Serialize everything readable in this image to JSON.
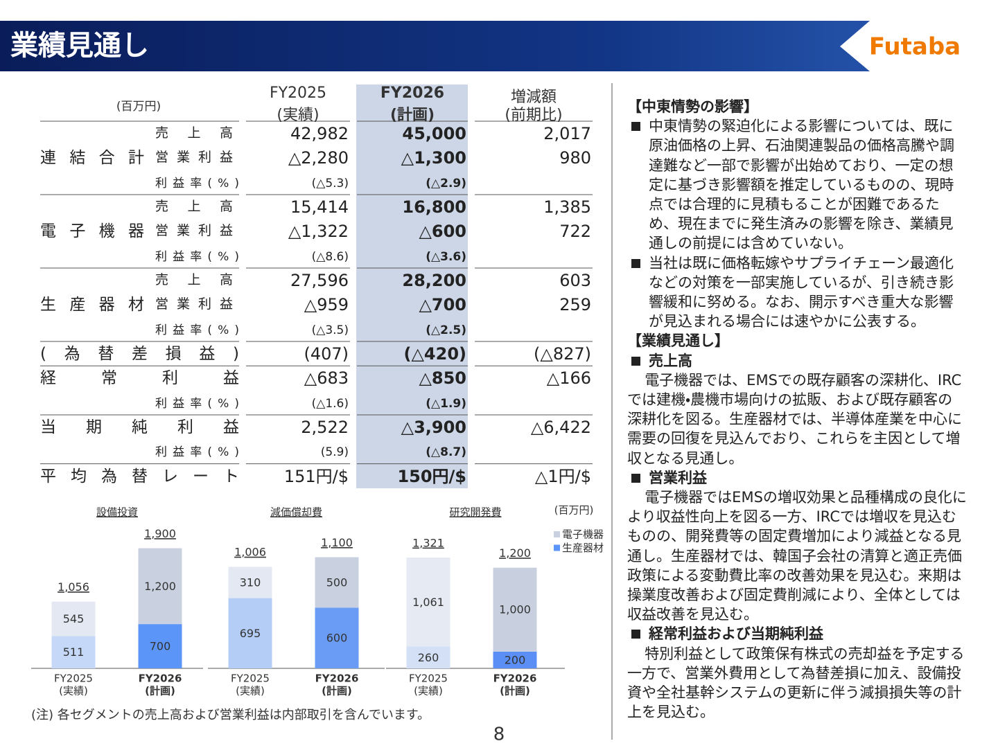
{
  "header": {
    "title": "業績見通し",
    "logo": "Futaba"
  },
  "table": {
    "unit": "(百万円)",
    "columns": [
      {
        "title": "FY2025",
        "note": "(実績)"
      },
      {
        "title": "FY2026",
        "note": "(計画)"
      },
      {
        "title": "増減額",
        "note": "(前期比)"
      }
    ],
    "groups": [
      {
        "label": "連結合計",
        "rows": [
          {
            "item": "売上高",
            "cells": [
              "42,982",
              "45,000",
              "2,017"
            ]
          },
          {
            "item": "営業利益",
            "cells": [
              "△2,280",
              "△1,300",
              "980"
            ]
          },
          {
            "item": "利益率(%)",
            "cells": [
              "(△5.3)",
              "(△2.9)"
            ]
          }
        ]
      },
      {
        "label": "電子機器",
        "rows": [
          {
            "item": "売上高",
            "cells": [
              "15,414",
              "16,800",
              "1,385"
            ]
          },
          {
            "item": "営業利益",
            "cells": [
              "△1,322",
              "△600",
              "722"
            ]
          },
          {
            "item": "利益率(%)",
            "cells": [
              "(△8.6)",
              "(△3.6)"
            ]
          }
        ]
      },
      {
        "label": "生産器材",
        "rows": [
          {
            "item": "売上高",
            "cells": [
              "27,596",
              "28,200",
              "603"
            ]
          },
          {
            "item": "営業利益",
            "cells": [
              "△959",
              "△700",
              "259"
            ]
          },
          {
            "item": "利益率(%)",
            "cells": [
              "(△3.5)",
              "(△2.5)"
            ]
          }
        ]
      },
      {
        "label": "(為替差損益)",
        "rows": [
          {
            "cells": [
              "(407)",
              "(△420)",
              "(△827)"
            ]
          }
        ]
      },
      {
        "label": "経常利益",
        "rows": [
          {
            "cells": [
              "△683",
              "△850",
              "△166"
            ]
          },
          {
            "item": "利益率(%)",
            "cells": [
              "(△1.6)",
              "(△1.9)"
            ]
          }
        ]
      },
      {
        "label": "当期純利益",
        "rows": [
          {
            "cells": [
              "2,522",
              "△3,900",
              "△6,422"
            ]
          },
          {
            "item": "利益率(%)",
            "cells": [
              "(5.9)",
              "(△8.7)"
            ]
          }
        ]
      },
      {
        "label": "平均為替レート",
        "rows": [
          {
            "cells": [
              "151円/$",
              "150円/$",
              "△1円/$"
            ]
          }
        ]
      }
    ]
  },
  "charts": {
    "unit": "(百万円)",
    "items": [
      {
        "type": "bar",
        "title": "設備投資",
        "categories": [
          "FY2025",
          "FY2026"
        ],
        "category_notes": [
          "(実績)",
          "(計画)"
        ],
        "ylim": [
          0,
          1950
        ],
        "series": [
          {
            "name": "電子機器",
            "color": [
              "#e3e8f2",
              "#c9d1e1"
            ],
            "values": [
              545,
              1200
            ],
            "value_labels": [
              "545",
              "1,200"
            ]
          },
          {
            "name": "生産器材",
            "color": [
              "#c5d8f7",
              "#5b95f7"
            ],
            "values": [
              511,
              700
            ],
            "value_labels": [
              "511",
              "700"
            ]
          }
        ],
        "totals": [
          1056,
          1900
        ],
        "total_labels": [
          "1,056",
          "1,900"
        ]
      },
      {
        "type": "bar",
        "title": "減価償却費",
        "categories": [
          "FY2025",
          "FY2026"
        ],
        "category_notes": [
          "(実績)",
          "(計画)"
        ],
        "ylim": [
          0,
          1220
        ],
        "series": [
          {
            "name": "電子機器",
            "color": [
              "#e3e8f2",
              "#c9d1e1"
            ],
            "values": [
              310,
              500
            ],
            "value_labels": [
              "310",
              "500"
            ]
          },
          {
            "name": "生産器材",
            "color": [
              "#b3cdf7",
              "#6a9cf5"
            ],
            "values": [
              695,
              600
            ],
            "value_labels": [
              "695",
              "600"
            ]
          }
        ],
        "totals": [
          1006,
          1100
        ],
        "total_labels": [
          "1,006",
          "1,100"
        ]
      },
      {
        "type": "bar",
        "title": "研究開発費",
        "categories": [
          "FY2025",
          "FY2026"
        ],
        "category_notes": [
          "(実績)",
          "(計画)"
        ],
        "ylim": [
          0,
          1470
        ],
        "series": [
          {
            "name": "電子機器",
            "color": [
              "#e6eaf3",
              "#c8d0e0"
            ],
            "values": [
              1061,
              1000
            ],
            "value_labels": [
              "1,061",
              "1,000"
            ]
          },
          {
            "name": "生産器材",
            "color": [
              "#d3e0f5",
              "#5b8ff5"
            ],
            "values": [
              260,
              200
            ],
            "value_labels": [
              "260",
              "200"
            ]
          }
        ],
        "totals": [
          1321,
          1200
        ],
        "total_labels": [
          "1,321",
          "1,200"
        ]
      }
    ]
  },
  "note": "(注) 各セグメントの売上高および営業利益は内部取引を含んでいます。",
  "page_number": "8",
  "commentary": [
    {
      "heading": "【中東情勢の影響】",
      "bullets": [
        "中東情勢の緊迫化による影響については、既に原油価格の上昇、石油関連製品の価格高騰や調達難など一部で影響が出始めており、一定の想定に基づき影響額を推定しているものの、現時点では合理的に見積もることが困難であるため、現在までに発生済みの影響を除き、業績見通しの前提には含めていない。",
        "当社は既に価格転嫁やサプライチェーン最適化などの対策を一部実施しているが、引き続き影響緩和に努める。なお、開示すべき重大な影響が見込まれる場合には速やかに公表する。"
      ]
    },
    {
      "heading": "【業績見通し】",
      "topics": [
        {
          "title": "売上高",
          "text": "電子機器では、EMSでの既存顧客の深耕化、IRCでは建機・農機市場向けの拡販、および既存顧客の深耕化を図る。生産器材では、半導体産業を中心に需要の回復を見込んでおり、これらを主因として増収となる見通し。"
        },
        {
          "title": "営業利益",
          "text": "電子機器ではEMSの増収効果と品種構成の良化により収益性向上を図る一方、IRCでは増収を見込むものの、開発費等の固定費増加により減益となる見通し。生産器材では、韓国子会社の清算と適正売価政策による変動費比率の改善効果を見込む。来期は操業度改善および固定費削減により、全体としては収益改善を見込む。"
        },
        {
          "title": "経常利益および当期純利益",
          "text": "特別利益として政策保有株式の売却益を予定する一方で、営業外費用として為替差損に加え、設備投資や全社基幹システムの更新に伴う減損損失等の計上を見込む。"
        }
      ]
    }
  ]
}
